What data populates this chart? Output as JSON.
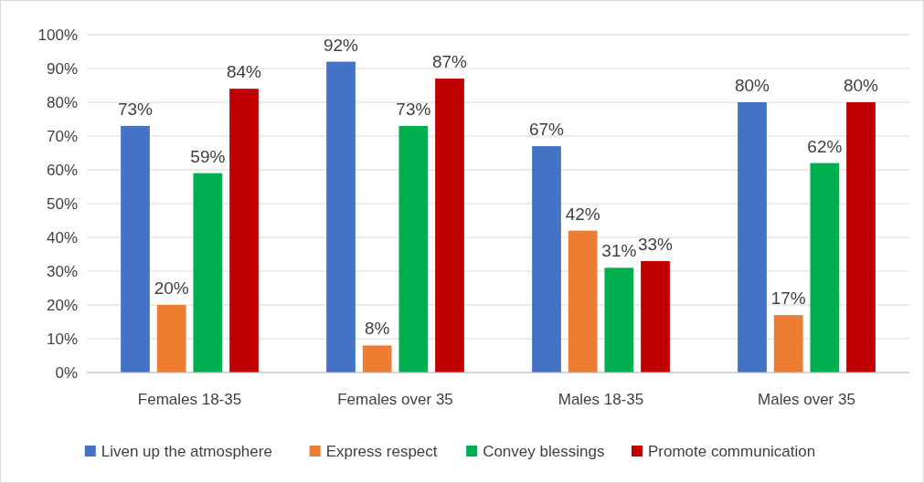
{
  "chart_data": {
    "type": "bar",
    "categories": [
      "Females 18-35",
      "Females over 35",
      "Males 18-35",
      "Males over 35"
    ],
    "series": [
      {
        "name": "Liven up the atmosphere",
        "color": "#4472c4",
        "values": [
          73,
          92,
          67,
          80
        ],
        "value_labels": [
          "73%",
          "92%",
          "67%",
          "80%"
        ]
      },
      {
        "name": "Express respect",
        "color": "#ed7d31",
        "values": [
          20,
          8,
          42,
          17
        ],
        "value_labels": [
          "20%",
          "8%",
          "42%",
          "17%"
        ]
      },
      {
        "name": "Convey blessings",
        "color": "#00b050",
        "values": [
          59,
          73,
          31,
          62
        ],
        "value_labels": [
          "59%",
          "73%",
          "31%",
          "62%"
        ]
      },
      {
        "name": "Promote communication",
        "color": "#c00000",
        "values": [
          84,
          87,
          33,
          80
        ],
        "value_labels": [
          "84%",
          "87%",
          "33%",
          "80%"
        ]
      }
    ],
    "ylim": [
      0,
      100
    ],
    "yticks": [
      {
        "value": 0,
        "label": "0%"
      },
      {
        "value": 10,
        "label": "10%"
      },
      {
        "value": 20,
        "label": "20%"
      },
      {
        "value": 30,
        "label": "30%"
      },
      {
        "value": 40,
        "label": "40%"
      },
      {
        "value": 50,
        "label": "50%"
      },
      {
        "value": 60,
        "label": "60%"
      },
      {
        "value": 70,
        "label": "70%"
      },
      {
        "value": 80,
        "label": "80%"
      },
      {
        "value": 90,
        "label": "90%"
      },
      {
        "value": 100,
        "label": "100%"
      }
    ],
    "grid": "y",
    "legend": "bottom"
  }
}
